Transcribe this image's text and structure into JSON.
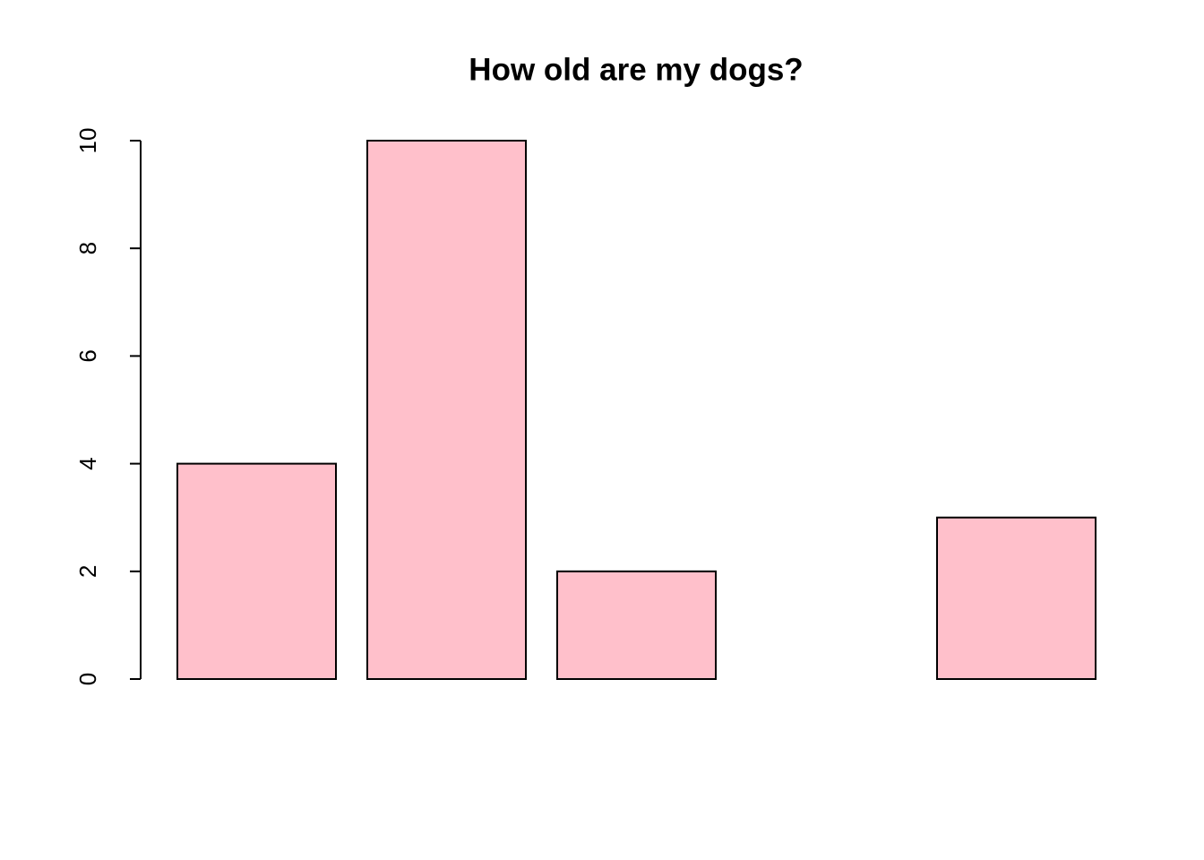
{
  "chart_data": {
    "type": "bar",
    "title": "How old are my dogs?",
    "categories": [
      null,
      null,
      null,
      null,
      null
    ],
    "values": [
      4,
      10,
      2,
      null,
      3
    ],
    "color": "#ffc0cb",
    "ylim": [
      0,
      10
    ],
    "yticks": [
      0,
      2,
      4,
      6,
      8,
      10
    ],
    "grid": false
  }
}
